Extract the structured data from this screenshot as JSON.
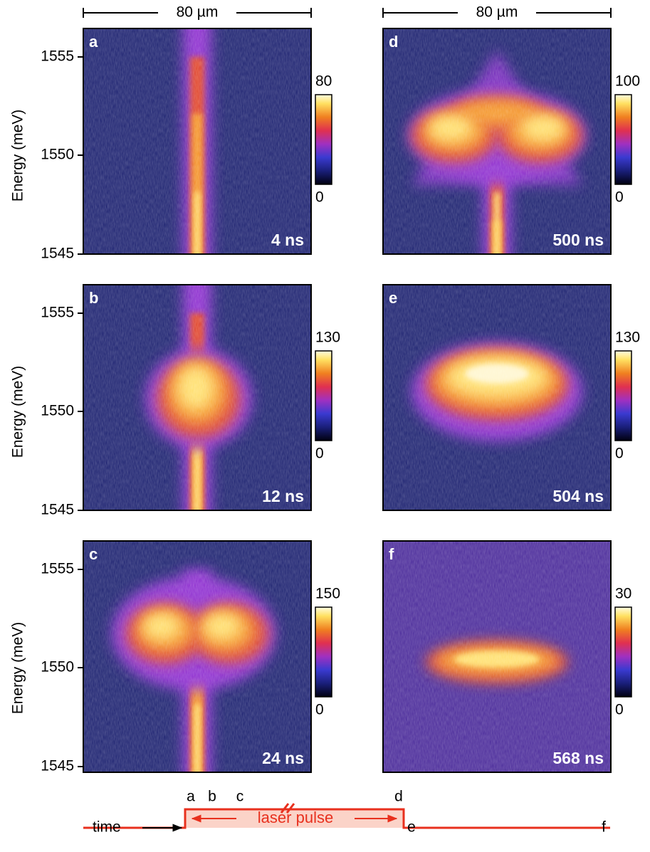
{
  "scale_bars": [
    "80 µm",
    "80 µm"
  ],
  "rows": [
    {
      "y_label": "Energy (meV)",
      "y_ticks": [
        1555,
        1550,
        1545
      ]
    },
    {
      "y_label": "Energy (meV)",
      "y_ticks": [
        1555,
        1550,
        1545
      ]
    },
    {
      "y_label": "Energy (meV)",
      "y_ticks": [
        1555,
        1550,
        1545
      ]
    }
  ],
  "panels": [
    {
      "label": "a",
      "time": "4 ns",
      "colorbar": [
        80,
        0
      ]
    },
    {
      "label": "b",
      "time": "12 ns",
      "colorbar": [
        130,
        0
      ]
    },
    {
      "label": "c",
      "time": "24 ns",
      "colorbar": [
        150,
        0
      ]
    },
    {
      "label": "d",
      "time": "500 ns",
      "colorbar": [
        100,
        0
      ]
    },
    {
      "label": "e",
      "time": "504 ns",
      "colorbar": [
        130,
        0
      ]
    },
    {
      "label": "f",
      "time": "568 ns",
      "colorbar": [
        30,
        0
      ]
    }
  ],
  "timeline": {
    "markers": [
      "a",
      "b",
      "c",
      "d",
      "e",
      "f"
    ],
    "time_label": "time",
    "pulse_label": "laser pulse"
  }
}
